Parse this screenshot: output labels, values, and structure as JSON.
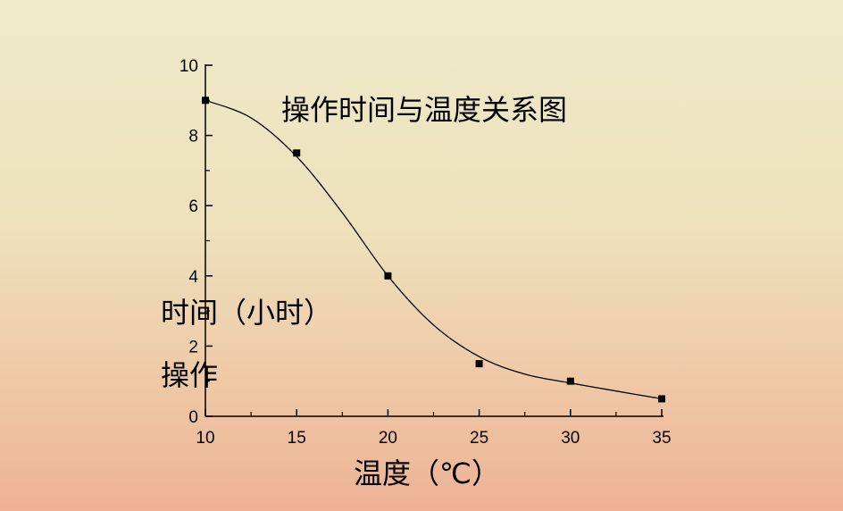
{
  "chart_data": {
    "type": "scatter",
    "title": "操作时间与温度关系图",
    "xlabel": "温度（℃）",
    "ylabel_line1": "时间（小时）",
    "ylabel_line2": "操作",
    "xlim": [
      10,
      35
    ],
    "ylim": [
      0,
      10
    ],
    "x_ticks": [
      10,
      15,
      20,
      25,
      30,
      35
    ],
    "y_ticks": [
      0,
      2,
      4,
      6,
      8,
      10
    ],
    "grid": false,
    "legend": "none",
    "series": [
      {
        "points": [
          {
            "x": 10,
            "y": 9.0
          },
          {
            "x": 15,
            "y": 7.5
          },
          {
            "x": 20,
            "y": 4.0
          },
          {
            "x": 25,
            "y": 1.5
          },
          {
            "x": 30,
            "y": 1.0
          },
          {
            "x": 35,
            "y": 0.5
          }
        ]
      }
    ],
    "fit_curve": [
      {
        "x": 10,
        "y": 9.0
      },
      {
        "x": 12.5,
        "y": 8.5
      },
      {
        "x": 15,
        "y": 7.4
      },
      {
        "x": 17.5,
        "y": 5.8
      },
      {
        "x": 20,
        "y": 4.0
      },
      {
        "x": 22.5,
        "y": 2.6
      },
      {
        "x": 25,
        "y": 1.7
      },
      {
        "x": 27.5,
        "y": 1.2
      },
      {
        "x": 30,
        "y": 0.95
      },
      {
        "x": 32.5,
        "y": 0.72
      },
      {
        "x": 35,
        "y": 0.5
      }
    ],
    "colors": {
      "marker": "#000000",
      "curve": "#000000",
      "axis": "#000000"
    }
  }
}
